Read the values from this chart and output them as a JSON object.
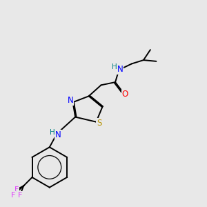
{
  "bg_color": "#e8e8e8",
  "bond_color": "#000000",
  "atom_colors": {
    "N": "#0000ff",
    "O": "#ff0000",
    "S": "#b8960c",
    "F": "#e040fb",
    "H": "#008080",
    "C": "#000000"
  }
}
